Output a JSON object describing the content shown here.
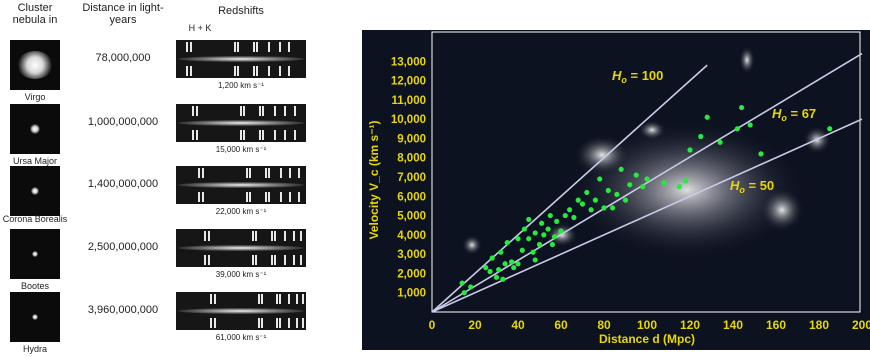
{
  "left_panel": {
    "headers": {
      "cluster": "Cluster nebula in",
      "distance": "Distance in light-years",
      "redshifts": "Redshifts",
      "hk_label": "H + K"
    },
    "rows": [
      {
        "name": "Virgo",
        "distance": "78,000,000",
        "velocity": "1,200 km s⁻¹"
      },
      {
        "name": "Ursa Major",
        "distance": "1,000,000,000",
        "velocity": "15,000 km s⁻¹"
      },
      {
        "name": "Corona Borealis",
        "distance": "1,400,000,000",
        "velocity": "22,000 km s⁻¹"
      },
      {
        "name": "Bootes",
        "distance": "2,500,000,000",
        "velocity": "39,000 km s⁻¹"
      },
      {
        "name": "Hydra",
        "distance": "3,960,000,000",
        "velocity": "61,000 km s⁻¹"
      }
    ]
  },
  "chart_data": {
    "type": "scatter",
    "title": "",
    "xlabel": "Distance d (Mpc)",
    "ylabel": "Velocity V_c (km s⁻¹)",
    "xlim": [
      0,
      200
    ],
    "ylim": [
      0,
      14000
    ],
    "x_ticks": [
      "0",
      "20",
      "40",
      "60",
      "80",
      "100",
      "120",
      "140",
      "160",
      "180",
      "200"
    ],
    "y_ticks": [
      "1,000",
      "2,000",
      "3,000",
      "4,000",
      "5,000",
      "6,000",
      "7,000",
      "8,000",
      "9,000",
      "10,000",
      "11,000",
      "12,000",
      "13,000"
    ],
    "fit_lines": [
      {
        "label_h": "H",
        "label_sub": "o",
        "label_value": " = 100",
        "slope": 100,
        "x_end": 128
      },
      {
        "label_h": "H",
        "label_sub": "o",
        "label_value": " = 67",
        "slope": 67,
        "x_end": 200
      },
      {
        "label_h": "H",
        "label_sub": "o",
        "label_value": " = 50",
        "slope": 50,
        "x_end": 200
      }
    ],
    "points": [
      [
        14,
        1500
      ],
      [
        15,
        1000
      ],
      [
        18,
        1300
      ],
      [
        25,
        2300
      ],
      [
        27,
        2100
      ],
      [
        28,
        2800
      ],
      [
        30,
        1800
      ],
      [
        31,
        2200
      ],
      [
        32,
        3100
      ],
      [
        33,
        1700
      ],
      [
        34,
        2500
      ],
      [
        35,
        3600
      ],
      [
        37,
        2600
      ],
      [
        38,
        2300
      ],
      [
        40,
        3800
      ],
      [
        40,
        2500
      ],
      [
        42,
        3200
      ],
      [
        43,
        4300
      ],
      [
        45,
        3800
      ],
      [
        45,
        4800
      ],
      [
        47,
        3100
      ],
      [
        48,
        2700
      ],
      [
        48,
        4100
      ],
      [
        50,
        3500
      ],
      [
        51,
        4600
      ],
      [
        52,
        4000
      ],
      [
        54,
        4300
      ],
      [
        55,
        5000
      ],
      [
        56,
        3500
      ],
      [
        57,
        3900
      ],
      [
        58,
        4700
      ],
      [
        60,
        4200
      ],
      [
        62,
        5000
      ],
      [
        64,
        5300
      ],
      [
        66,
        4900
      ],
      [
        68,
        5800
      ],
      [
        70,
        5600
      ],
      [
        72,
        6200
      ],
      [
        74,
        5300
      ],
      [
        76,
        5800
      ],
      [
        78,
        6900
      ],
      [
        80,
        5400
      ],
      [
        82,
        6300
      ],
      [
        84,
        5400
      ],
      [
        86,
        6100
      ],
      [
        88,
        7400
      ],
      [
        90,
        5800
      ],
      [
        92,
        6600
      ],
      [
        95,
        7100
      ],
      [
        98,
        6500
      ],
      [
        100,
        6900
      ],
      [
        108,
        6700
      ],
      [
        115,
        6500
      ],
      [
        118,
        6800
      ],
      [
        120,
        8400
      ],
      [
        125,
        9100
      ],
      [
        128,
        10100
      ],
      [
        134,
        8800
      ],
      [
        142,
        9500
      ],
      [
        144,
        10600
      ],
      [
        148,
        9700
      ],
      [
        153,
        8200
      ],
      [
        185,
        9500
      ]
    ],
    "grid": false,
    "legend": "none",
    "colors": {
      "background": "#0d1220",
      "axis_text": "#e8d800",
      "points": "#27ea3e",
      "lines": "#c9cbe8",
      "frame": "#ffffff"
    }
  }
}
